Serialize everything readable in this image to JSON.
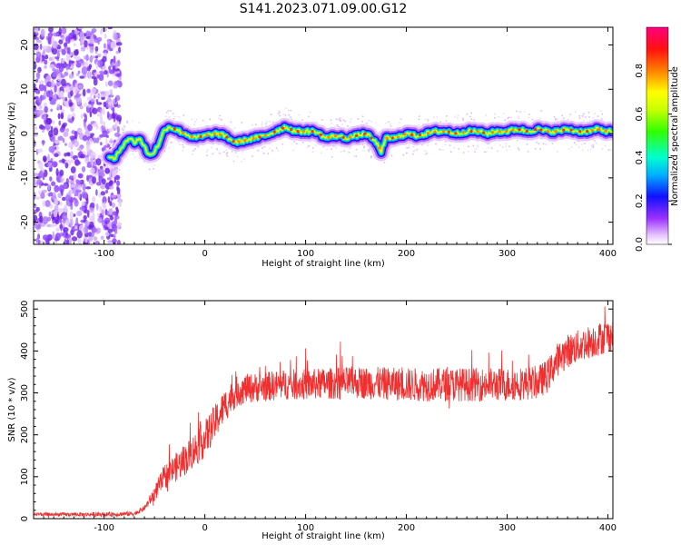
{
  "figure": {
    "title": "S141.2023.071.09.00.G12"
  },
  "chart_data": [
    {
      "type": "heatmap",
      "name": "spectrogram",
      "xlabel": "Height of straight line (km)",
      "ylabel": "Frequency (Hz)",
      "xlim": [
        -170,
        405
      ],
      "ylim": [
        -25,
        24
      ],
      "x_ticks": [
        -100,
        0,
        100,
        200,
        300,
        400
      ],
      "x_tick_labels": [
        "-100",
        "0",
        "100",
        "200",
        "300",
        "400"
      ],
      "y_ticks": [
        -20,
        -10,
        0,
        10,
        20
      ],
      "y_tick_labels": [
        "-20",
        "-10",
        "0",
        "10",
        "20"
      ],
      "colorbar": {
        "label": "Normalized spectral amplitude",
        "range": [
          0,
          1
        ],
        "ticks": [
          0.0,
          0.2,
          0.4,
          0.6,
          0.8
        ],
        "tick_labels": [
          "0.0",
          "0.2",
          "0.4",
          "0.6",
          "0.8"
        ]
      },
      "noise_region_x": [
        -170,
        -90
      ],
      "ridge": {
        "x": [
          -95,
          -90,
          -85,
          -80,
          -75,
          -70,
          -65,
          -60,
          -55,
          -50,
          -45,
          -40,
          -35,
          -30,
          -25,
          -20,
          -10,
          0,
          10,
          20,
          30,
          40,
          50,
          60,
          70,
          80,
          90,
          100,
          110,
          120,
          130,
          140,
          150,
          160,
          170,
          175,
          180,
          190,
          200,
          210,
          220,
          230,
          240,
          250,
          260,
          270,
          280,
          290,
          300,
          310,
          320,
          330,
          340,
          350,
          360,
          370,
          380,
          390,
          400,
          405
        ],
        "y": [
          -5,
          -6,
          -4,
          -2,
          -1,
          -2,
          -1,
          -3,
          -5,
          -4,
          -2,
          1,
          1.5,
          1,
          0.5,
          0,
          -1,
          -0.5,
          0,
          -0.5,
          -2,
          -1.5,
          -1,
          -0.5,
          0.5,
          1.5,
          0.5,
          0.5,
          0.5,
          -1,
          -0.5,
          -1,
          -0.5,
          0,
          -2,
          -4,
          -1,
          -1,
          0,
          -0.5,
          0,
          0.5,
          0.5,
          0,
          0.5,
          0.5,
          0,
          0.5,
          0.5,
          1,
          0.5,
          1,
          0.5,
          0.5,
          1,
          0.5,
          0.5,
          1,
          0.5,
          0.5
        ]
      }
    },
    {
      "type": "line",
      "name": "snr",
      "xlabel": "Height of straight line (km)",
      "ylabel": "SNR (10 * v/v)",
      "xlim": [
        -170,
        405
      ],
      "ylim": [
        0,
        520
      ],
      "x_ticks": [
        -100,
        0,
        100,
        200,
        300,
        400
      ],
      "x_tick_labels": [
        "-100",
        "0",
        "100",
        "200",
        "300",
        "400"
      ],
      "y_ticks": [
        0,
        100,
        200,
        300,
        400,
        500
      ],
      "y_tick_labels": [
        "0",
        "100",
        "200",
        "300",
        "400",
        "500"
      ],
      "color": "#ee3030",
      "trend": {
        "x": [
          -170,
          -100,
          -70,
          -60,
          -50,
          -40,
          -20,
          0,
          10,
          20,
          30,
          40,
          60,
          80,
          100,
          150,
          200,
          250,
          300,
          330,
          340,
          350,
          360,
          380,
          405
        ],
        "y": [
          10,
          10,
          12,
          25,
          60,
          100,
          140,
          190,
          230,
          270,
          300,
          310,
          315,
          320,
          320,
          325,
          320,
          320,
          320,
          325,
          340,
          380,
          400,
          420,
          440
        ]
      },
      "noise_amplitude": [
        {
          "x": -170,
          "a": 4
        },
        {
          "x": -60,
          "a": 6
        },
        {
          "x": -40,
          "a": 30
        },
        {
          "x": 0,
          "a": 45
        },
        {
          "x": 40,
          "a": 35
        },
        {
          "x": 200,
          "a": 40
        },
        {
          "x": 405,
          "a": 40
        }
      ]
    }
  ]
}
